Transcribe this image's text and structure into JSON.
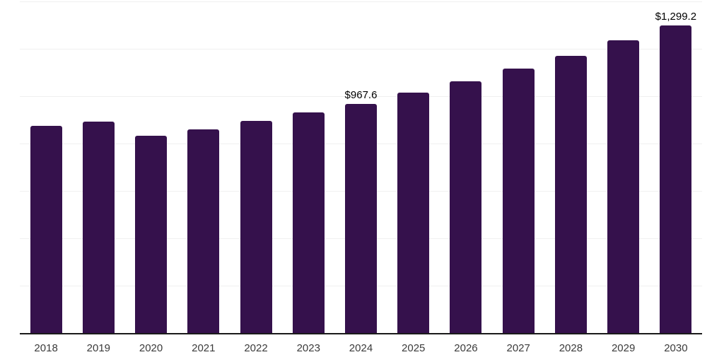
{
  "chart_data": {
    "type": "bar",
    "title": "",
    "xlabel": "",
    "ylabel": "",
    "categories": [
      "2018",
      "2019",
      "2020",
      "2021",
      "2022",
      "2023",
      "2024",
      "2025",
      "2026",
      "2027",
      "2028",
      "2029",
      "2030"
    ],
    "values": [
      874,
      892,
      834,
      859,
      896,
      930,
      967.6,
      1014,
      1064,
      1115,
      1171,
      1235,
      1299.2
    ],
    "value_labels": {
      "2024": "$967.6",
      "2030": "$1,299.2"
    },
    "ylim": [
      0,
      1400
    ],
    "gridline_step": 200,
    "grid": true,
    "legend": false,
    "colors": {
      "bar": "#35114c",
      "grid": "#f0f0f0",
      "axis": "#1a1a1a",
      "tick_text": "#3b3b3b",
      "value_text": "#000000",
      "background": "#ffffff"
    }
  }
}
